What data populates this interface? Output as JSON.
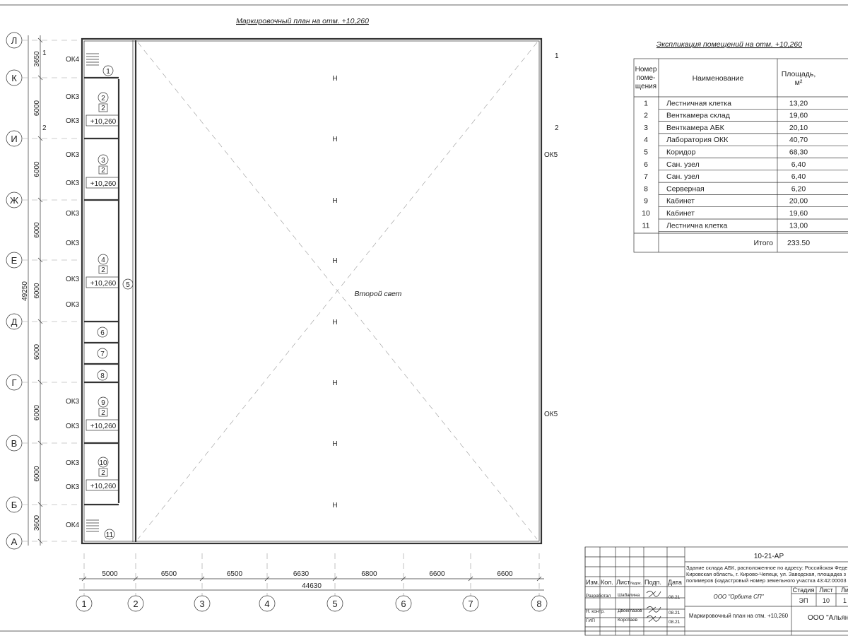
{
  "title": "Маркировочный план на отм. +10,260",
  "axes_rows": [
    "Л",
    "К",
    "И",
    "Ж",
    "Е",
    "Д",
    "Г",
    "В",
    "Б",
    "А"
  ],
  "row_dims": [
    "3650",
    "6000",
    "6000",
    "6000",
    "6000",
    "6000",
    "6000",
    "6000",
    "3600"
  ],
  "row_total": "49250",
  "axes_cols": [
    "1",
    "2",
    "3",
    "4",
    "5",
    "6",
    "7",
    "8"
  ],
  "col_dims": [
    "5000",
    "6500",
    "6500",
    "6630",
    "6800",
    "6600",
    "6600"
  ],
  "col_total": "44630",
  "section_marks": [
    "1",
    "2"
  ],
  "center_label": "Второй свет",
  "window_labels": {
    "ok3": "ОК3",
    "ok4": "ОК4",
    "ok5": "ОК5"
  },
  "rooms": [
    {
      "num": "1"
    },
    {
      "num": "2",
      "floor": "2",
      "level": "+10,260"
    },
    {
      "num": "3",
      "floor": "2",
      "level": "+10,260"
    },
    {
      "num": "4",
      "floor": "2",
      "level": "+10,260"
    },
    {
      "num": "5"
    },
    {
      "num": "6"
    },
    {
      "num": "7"
    },
    {
      "num": "8"
    },
    {
      "num": "9",
      "floor": "2",
      "level": "+10,260"
    },
    {
      "num": "10",
      "floor": "2",
      "level": "+10,260"
    },
    {
      "num": "11"
    }
  ],
  "explication": {
    "title": "Экспликация помещений на отм. +10,260",
    "headers": [
      "Номер поме-щения",
      "Наименование",
      "Площадь, м²"
    ],
    "rows": [
      [
        "1",
        "Лестничная клетка",
        "13,20"
      ],
      [
        "2",
        "Венткамера склад",
        "19,60"
      ],
      [
        "3",
        "Венткамера АБК",
        "20,10"
      ],
      [
        "4",
        "Лаборатория ОКК",
        "40,70"
      ],
      [
        "5",
        "Коридор",
        "68,30"
      ],
      [
        "6",
        "Сан. узел",
        "6,40"
      ],
      [
        "7",
        "Сан. узел",
        "6,40"
      ],
      [
        "8",
        "Серверная",
        "6,20"
      ],
      [
        "9",
        "Кабинет",
        "20,00"
      ],
      [
        "10",
        "Кабинет",
        "19,60"
      ],
      [
        "11",
        "Лестнична клетка",
        "13,00"
      ]
    ],
    "total_label": "Итого",
    "total_value": "233.50"
  },
  "stamp": {
    "code": "10-21-АР",
    "address": [
      "Здание склада АБК, расположенное по адресу: Российская Феде",
      "Кировская область, г. Кирово-Чепецк, ул. Заводская, площадка з",
      "полимеров (кадастровый номер земельного участка 43:42:00003"
    ],
    "col_headers": [
      "Изм.",
      "Кол.",
      "Лист",
      "№док.",
      "Подп.",
      "Дата"
    ],
    "people": [
      {
        "role": "Разработал",
        "name": "Шабалина",
        "date": "08.21"
      },
      {
        "role": "Н. контр.",
        "name": "Двоеглазов",
        "date": "08.21"
      },
      {
        "role": "ГИП",
        "name": "Коротаев",
        "date": "08.21"
      }
    ],
    "company": "ООО \"Орбита СП\"",
    "sheet_title": "Маркировочный план на отм. +10,260",
    "stage_header": "Стадия",
    "sheet_header": "Лист",
    "sheets_header": "Ли",
    "stage": "ЭП",
    "sheet": "10",
    "sheets": "1",
    "org": "ООО \"Альянс"
  }
}
